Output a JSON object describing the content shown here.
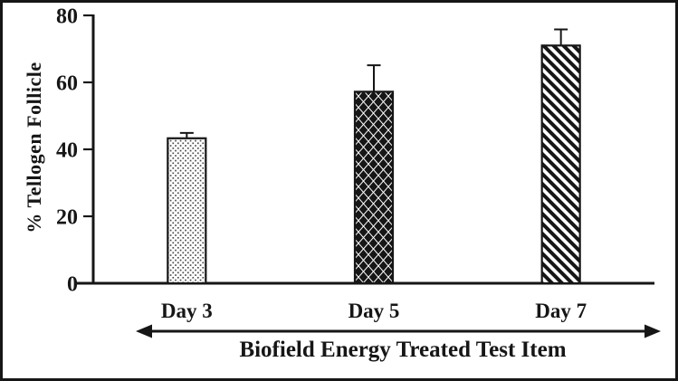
{
  "figure": {
    "background": "#ffffff",
    "border_color": "#161616",
    "foreground": "#161616"
  },
  "chart_data": {
    "type": "bar",
    "title": "",
    "categories": [
      "Day 3",
      "Day 5",
      "Day 7"
    ],
    "values": [
      43.3,
      57.2,
      71.0
    ],
    "errors": [
      1.6,
      7.9,
      4.8
    ],
    "yticks": [
      0,
      20,
      40,
      60,
      80
    ],
    "ylim": [
      0,
      80
    ],
    "ylabel": "% Tellogen Follicle",
    "xlabel": "Biofield Energy Treated Test Item",
    "legend": "none",
    "grid": false,
    "bar_patterns": [
      "dots",
      "diamonds",
      "diagonal-stripes"
    ],
    "bar_outline_color": "#161616",
    "pattern_color": "#161616",
    "error_bar_direction": "upper-only",
    "x_annotation_arrow": "double-headed"
  }
}
